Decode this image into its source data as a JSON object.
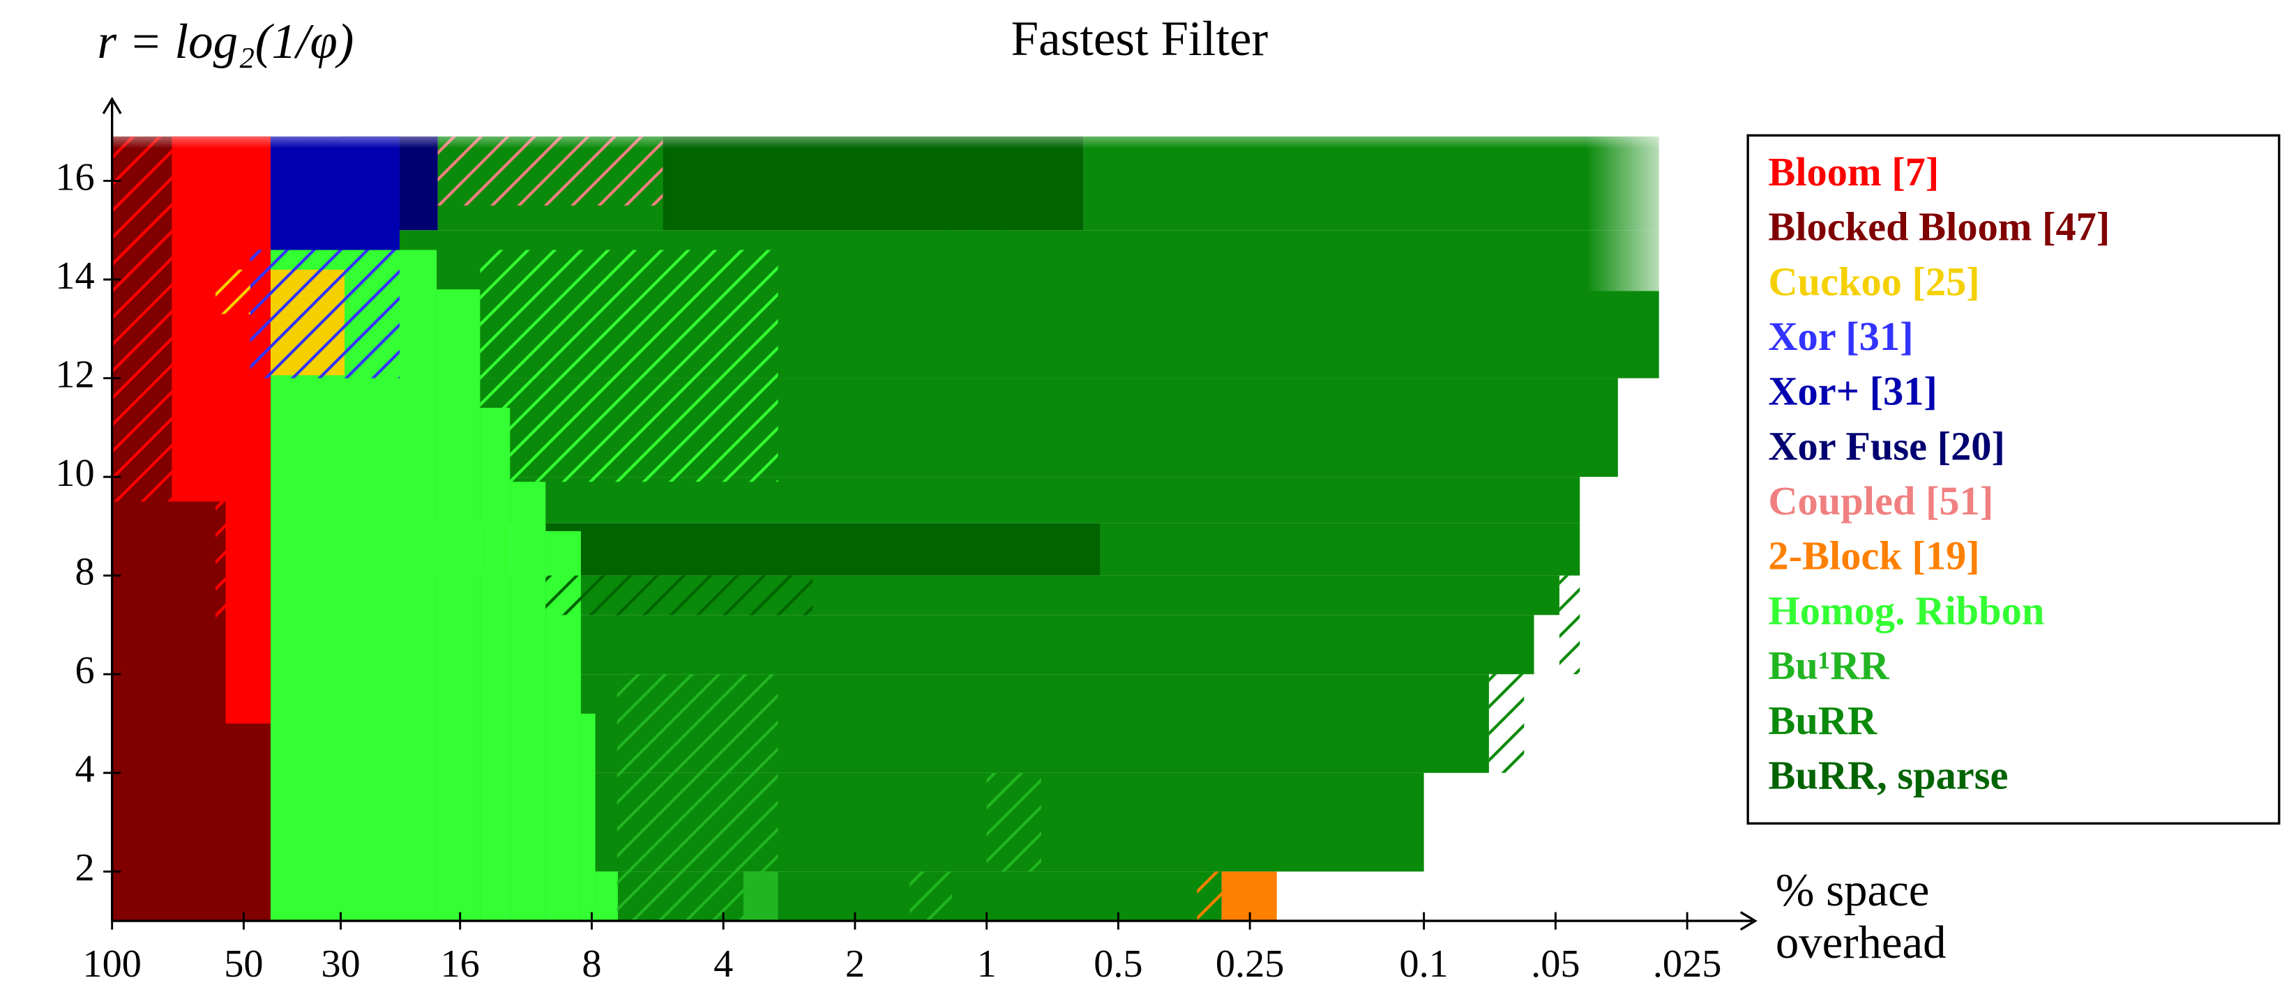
{
  "chart_data": {
    "type": "region-map",
    "title": "Fastest Filter",
    "y_label": "r = log₂(1/φ)",
    "x_label": [
      "% space",
      "overhead"
    ],
    "x_log_scale": true,
    "xlim": [
      100,
      0.0183
    ],
    "ylim": [
      1,
      17.6
    ],
    "xticks": [
      100,
      50,
      30,
      16,
      8,
      4,
      2,
      1,
      0.5,
      0.25,
      0.1,
      {
        "value": 0.05,
        "label": ".05"
      },
      {
        "value": 0.025,
        "label": ".025"
      }
    ],
    "yticks": [
      2,
      4,
      6,
      8,
      10,
      12,
      14,
      16
    ],
    "legend": "right",
    "series": [
      {
        "name": "Bloom [7]",
        "color": "#ff0000",
        "regions": [
          {
            "x": [
              73,
              43.4
            ],
            "y": [
              9.5,
              16.9
            ]
          },
          {
            "x": [
              55,
              43.4
            ],
            "y": [
              5,
              9.5
            ]
          },
          {
            "x": [
              100,
              73
            ],
            "y": [
              9.5,
              16.9
            ],
            "hatched": true
          },
          {
            "x": [
              58,
              43.4
            ],
            "y": [
              7,
              12
            ],
            "hatched": true
          }
        ]
      },
      {
        "name": "Blocked Bloom [47]",
        "color": "#800000",
        "regions": [
          {
            "x": [
              100,
              43.4
            ],
            "y": [
              1,
              16.9
            ]
          }
        ]
      },
      {
        "name": "Cuckoo [25]",
        "color": "#f5d000",
        "regions": [
          {
            "x": [
              48.3,
              29.4
            ],
            "y": [
              12.06,
              14.2
            ]
          },
          {
            "x": [
              58,
              48.3
            ],
            "y": [
              13.3,
              14.2
            ],
            "hatched": true
          }
        ]
      },
      {
        "name": "Xor [31]",
        "color": "#3333ff",
        "regions": [
          {
            "x": [
              48.3,
              22
            ],
            "y": [
              12,
              14.6
            ],
            "hatched": true
          }
        ]
      },
      {
        "name": "Xor+ [31]",
        "color": "#0000b0",
        "regions": [
          {
            "x": [
              43.4,
              22
            ],
            "y": [
              14.6,
              16.9
            ]
          }
        ]
      },
      {
        "name": "Xor Fuse [20]",
        "color": "#000070",
        "regions": [
          {
            "x": [
              30,
              18
            ],
            "y": [
              15,
              16.9
            ]
          }
        ]
      },
      {
        "name": "Coupled [51]",
        "color": "#f08080",
        "regions": [
          {
            "x": [
              18,
              5.5
            ],
            "y": [
              15.5,
              16.9
            ],
            "hatched": true
          }
        ]
      },
      {
        "name": "2-Block [19]",
        "color": "#ff8000",
        "regions": [
          {
            "x": [
              0.29,
              0.217
            ],
            "y": [
              1,
              2
            ]
          },
          {
            "x": [
              0.33,
              0.29
            ],
            "y": [
              1,
              2
            ],
            "hatched": true
          }
        ]
      },
      {
        "name": "Homog. Ribbon",
        "color": "#33ff33",
        "regions": [
          {
            "x": [
              43.4,
              18.1
            ],
            "y": [
              1,
              14.6
            ]
          },
          {
            "x": [
              18.1,
              14.4
            ],
            "y": [
              1,
              13.8
            ]
          },
          {
            "x": [
              14.4,
              12.3
            ],
            "y": [
              1,
              11.4
            ]
          },
          {
            "x": [
              12.3,
              10.2
            ],
            "y": [
              1,
              9.9
            ]
          },
          {
            "x": [
              10.2,
              8.47
            ],
            "y": [
              1,
              8.9
            ]
          },
          {
            "x": [
              8.47,
              7.85
            ],
            "y": [
              1,
              5.2
            ]
          },
          {
            "x": [
              7.85,
              6.97
            ],
            "y": [
              1,
              2
            ]
          },
          {
            "x": [
              14.4,
              3
            ],
            "y": [
              9.9,
              14.6
            ],
            "hatched": true
          }
        ]
      },
      {
        "name": "Bu¹RR",
        "color": "#22b522",
        "regions": [
          {
            "x": [
              3.6,
              3
            ],
            "y": [
              1,
              2
            ]
          },
          {
            "x": [
              7,
              3
            ],
            "y": [
              1,
              6
            ],
            "hatched": true
          },
          {
            "x": [
              1.5,
              1.2
            ],
            "y": [
              1,
              2
            ],
            "hatched": true
          },
          {
            "x": [
              1,
              0.75
            ],
            "y": [
              2,
              4
            ],
            "hatched": true
          }
        ]
      },
      {
        "name": "BuRR",
        "color": "#0a8a0a",
        "regions": [
          {
            "x": [
              43.4,
              0.29
            ],
            "y": [
              1,
              2
            ]
          },
          {
            "x": [
              43.4,
              0.1
            ],
            "y": [
              2,
              4
            ]
          },
          {
            "x": [
              43.4,
              0.071
            ],
            "y": [
              4,
              6
            ]
          },
          {
            "x": [
              43.4,
              0.056
            ],
            "y": [
              6,
              7.2
            ]
          },
          {
            "x": [
              43.4,
              0.049
            ],
            "y": [
              7.2,
              8
            ]
          },
          {
            "x": [
              0.55,
              0.044
            ],
            "y": [
              8,
              9.06
            ]
          },
          {
            "x": [
              43.4,
              0.044
            ],
            "y": [
              9.06,
              10
            ]
          },
          {
            "x": [
              43.4,
              0.036
            ],
            "y": [
              10,
              12
            ]
          },
          {
            "x": [
              43.4,
              0.029
            ],
            "y": [
              12,
              15
            ]
          },
          {
            "x": [
              18,
              5.5
            ],
            "y": [
              15,
              16.9
            ]
          },
          {
            "x": [
              0.6,
              0.029
            ],
            "y": [
              15,
              16.9
            ]
          },
          {
            "x": [
              0.071,
              0.059
            ],
            "y": [
              4,
              6
            ],
            "hatched": true
          },
          {
            "x": [
              0.049,
              0.044
            ],
            "y": [
              6,
              8
            ],
            "hatched": true
          }
        ]
      },
      {
        "name": "BuRR, sparse",
        "color": "#006400",
        "regions": [
          {
            "x": [
              5.5,
              0.6
            ],
            "y": [
              15,
              16.9
            ]
          },
          {
            "x": [
              10.2,
              0.55
            ],
            "y": [
              8,
              9.06
            ]
          },
          {
            "x": [
              1.3,
              0.85
            ],
            "y": [
              15,
              16
            ],
            "hatched": true
          },
          {
            "x": [
              10.2,
              2.5
            ],
            "y": [
              7.2,
              8
            ],
            "hatched": true
          }
        ]
      }
    ]
  }
}
